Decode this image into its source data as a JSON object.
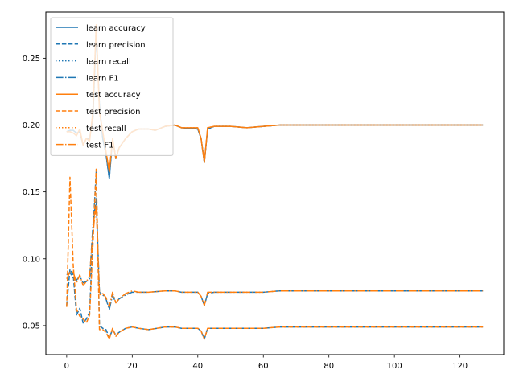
{
  "chart_data": {
    "type": "line",
    "title": "",
    "xlabel": "",
    "ylabel": "",
    "xlim": [
      -6.35,
      133.35
    ],
    "ylim": [
      0.0283,
      0.2845
    ],
    "xticks": [
      0,
      20,
      40,
      60,
      80,
      100,
      120
    ],
    "yticks": [
      0.05,
      0.1,
      0.15,
      0.2,
      0.25
    ],
    "ytick_labels": [
      "0.05",
      "0.10",
      "0.15",
      "0.20",
      "0.25"
    ],
    "grid": false,
    "legend_position": "top-left",
    "colors": {
      "learn": "#1f77b4",
      "test": "#ff7f0e"
    },
    "series": [
      {
        "name": "learn accuracy",
        "group": "learn",
        "style": "solid",
        "key": "acc"
      },
      {
        "name": "learn precision",
        "group": "learn",
        "style": "dashed",
        "key": "prec"
      },
      {
        "name": "learn recall",
        "group": "learn",
        "style": "dotted",
        "key": "acc"
      },
      {
        "name": "learn F1",
        "group": "learn",
        "style": "dashdot",
        "key": "f1"
      },
      {
        "name": "test accuracy",
        "group": "test",
        "style": "solid",
        "key": "acc"
      },
      {
        "name": "test precision",
        "group": "test",
        "style": "dashed",
        "key": "prec"
      },
      {
        "name": "test recall",
        "group": "test",
        "style": "dotted",
        "key": "acc"
      },
      {
        "name": "test F1",
        "group": "test",
        "style": "dashdot",
        "key": "f1"
      }
    ],
    "curves": {
      "learn": {
        "acc": [
          [
            0,
            0.195
          ],
          [
            1,
            0.196
          ],
          [
            2,
            0.196
          ],
          [
            3,
            0.194
          ],
          [
            4,
            0.195
          ],
          [
            5,
            0.185
          ],
          [
            6,
            0.19
          ],
          [
            7,
            0.19
          ],
          [
            8,
            0.205
          ],
          [
            9,
            0.27
          ],
          [
            10,
            0.215
          ],
          [
            11,
            0.19
          ],
          [
            12,
            0.178
          ],
          [
            13,
            0.16
          ],
          [
            14,
            0.19
          ],
          [
            15,
            0.175
          ],
          [
            16,
            0.183
          ],
          [
            18,
            0.19
          ],
          [
            20,
            0.195
          ],
          [
            22,
            0.197
          ],
          [
            25,
            0.197
          ],
          [
            27,
            0.196
          ],
          [
            30,
            0.199
          ],
          [
            33,
            0.2
          ],
          [
            35,
            0.198
          ],
          [
            40,
            0.197
          ],
          [
            41,
            0.19
          ],
          [
            42,
            0.172
          ],
          [
            43,
            0.197
          ],
          [
            45,
            0.199
          ],
          [
            50,
            0.199
          ],
          [
            55,
            0.198
          ],
          [
            60,
            0.199
          ],
          [
            65,
            0.2
          ],
          [
            70,
            0.2
          ],
          [
            80,
            0.2
          ],
          [
            100,
            0.2
          ],
          [
            127,
            0.2
          ]
        ],
        "prec": [
          [
            0,
            0.065
          ],
          [
            1,
            0.092
          ],
          [
            2,
            0.088
          ],
          [
            3,
            0.058
          ],
          [
            4,
            0.063
          ],
          [
            5,
            0.052
          ],
          [
            6,
            0.055
          ],
          [
            7,
            0.06
          ],
          [
            8,
            0.12
          ],
          [
            9,
            0.165
          ],
          [
            10,
            0.05
          ],
          [
            11,
            0.048
          ],
          [
            12,
            0.047
          ],
          [
            13,
            0.041
          ],
          [
            14,
            0.047
          ],
          [
            15,
            0.043
          ],
          [
            16,
            0.045
          ],
          [
            18,
            0.048
          ],
          [
            20,
            0.049
          ],
          [
            22,
            0.048
          ],
          [
            25,
            0.047
          ],
          [
            30,
            0.049
          ],
          [
            33,
            0.049
          ],
          [
            35,
            0.048
          ],
          [
            40,
            0.048
          ],
          [
            41,
            0.046
          ],
          [
            42,
            0.04
          ],
          [
            43,
            0.048
          ],
          [
            45,
            0.048
          ],
          [
            50,
            0.048
          ],
          [
            55,
            0.048
          ],
          [
            60,
            0.048
          ],
          [
            65,
            0.049
          ],
          [
            70,
            0.049
          ],
          [
            80,
            0.049
          ],
          [
            100,
            0.049
          ],
          [
            127,
            0.049
          ]
        ],
        "f1": [
          [
            0,
            0.088
          ],
          [
            1,
            0.09
          ],
          [
            2,
            0.085
          ],
          [
            3,
            0.084
          ],
          [
            4,
            0.087
          ],
          [
            5,
            0.082
          ],
          [
            6,
            0.083
          ],
          [
            7,
            0.085
          ],
          [
            8,
            0.125
          ],
          [
            9,
            0.145
          ],
          [
            10,
            0.075
          ],
          [
            11,
            0.073
          ],
          [
            12,
            0.07
          ],
          [
            13,
            0.062
          ],
          [
            14,
            0.073
          ],
          [
            15,
            0.067
          ],
          [
            16,
            0.07
          ],
          [
            18,
            0.073
          ],
          [
            20,
            0.075
          ],
          [
            22,
            0.075
          ],
          [
            25,
            0.075
          ],
          [
            30,
            0.076
          ],
          [
            33,
            0.076
          ],
          [
            35,
            0.075
          ],
          [
            40,
            0.075
          ],
          [
            41,
            0.072
          ],
          [
            42,
            0.065
          ],
          [
            43,
            0.074
          ],
          [
            45,
            0.075
          ],
          [
            50,
            0.075
          ],
          [
            55,
            0.075
          ],
          [
            60,
            0.075
          ],
          [
            65,
            0.076
          ],
          [
            70,
            0.076
          ],
          [
            80,
            0.076
          ],
          [
            100,
            0.076
          ],
          [
            127,
            0.076
          ]
        ]
      },
      "test": {
        "acc": [
          [
            0,
            0.195
          ],
          [
            1,
            0.195
          ],
          [
            2,
            0.194
          ],
          [
            3,
            0.192
          ],
          [
            4,
            0.197
          ],
          [
            5,
            0.185
          ],
          [
            6,
            0.19
          ],
          [
            7,
            0.188
          ],
          [
            8,
            0.21
          ],
          [
            9,
            0.275
          ],
          [
            10,
            0.21
          ],
          [
            11,
            0.195
          ],
          [
            12,
            0.18
          ],
          [
            13,
            0.165
          ],
          [
            14,
            0.19
          ],
          [
            15,
            0.175
          ],
          [
            16,
            0.183
          ],
          [
            18,
            0.19
          ],
          [
            20,
            0.195
          ],
          [
            22,
            0.197
          ],
          [
            25,
            0.197
          ],
          [
            27,
            0.196
          ],
          [
            30,
            0.199
          ],
          [
            33,
            0.2
          ],
          [
            35,
            0.198
          ],
          [
            40,
            0.198
          ],
          [
            41,
            0.19
          ],
          [
            42,
            0.172
          ],
          [
            43,
            0.198
          ],
          [
            45,
            0.199
          ],
          [
            50,
            0.199
          ],
          [
            55,
            0.198
          ],
          [
            60,
            0.199
          ],
          [
            65,
            0.2
          ],
          [
            70,
            0.2
          ],
          [
            80,
            0.2
          ],
          [
            100,
            0.2
          ],
          [
            127,
            0.2
          ]
        ],
        "prec": [
          [
            0,
            0.064
          ],
          [
            1,
            0.161
          ],
          [
            2,
            0.095
          ],
          [
            3,
            0.062
          ],
          [
            4,
            0.057
          ],
          [
            5,
            0.055
          ],
          [
            6,
            0.052
          ],
          [
            7,
            0.058
          ],
          [
            8,
            0.11
          ],
          [
            9,
            0.167
          ],
          [
            10,
            0.047
          ],
          [
            11,
            0.047
          ],
          [
            12,
            0.045
          ],
          [
            13,
            0.04
          ],
          [
            14,
            0.048
          ],
          [
            15,
            0.042
          ],
          [
            16,
            0.045
          ],
          [
            18,
            0.048
          ],
          [
            20,
            0.049
          ],
          [
            22,
            0.048
          ],
          [
            25,
            0.047
          ],
          [
            30,
            0.049
          ],
          [
            33,
            0.049
          ],
          [
            35,
            0.048
          ],
          [
            40,
            0.048
          ],
          [
            41,
            0.046
          ],
          [
            42,
            0.04
          ],
          [
            43,
            0.048
          ],
          [
            45,
            0.048
          ],
          [
            50,
            0.048
          ],
          [
            55,
            0.048
          ],
          [
            60,
            0.048
          ],
          [
            65,
            0.049
          ],
          [
            70,
            0.049
          ],
          [
            80,
            0.049
          ],
          [
            100,
            0.049
          ],
          [
            127,
            0.049
          ]
        ],
        "f1": [
          [
            0,
            0.085
          ],
          [
            1,
            0.09
          ],
          [
            2,
            0.09
          ],
          [
            3,
            0.082
          ],
          [
            4,
            0.088
          ],
          [
            5,
            0.08
          ],
          [
            6,
            0.083
          ],
          [
            7,
            0.087
          ],
          [
            8,
            0.12
          ],
          [
            9,
            0.14
          ],
          [
            10,
            0.073
          ],
          [
            11,
            0.074
          ],
          [
            12,
            0.071
          ],
          [
            13,
            0.064
          ],
          [
            14,
            0.075
          ],
          [
            15,
            0.067
          ],
          [
            16,
            0.07
          ],
          [
            18,
            0.074
          ],
          [
            20,
            0.076
          ],
          [
            22,
            0.075
          ],
          [
            25,
            0.075
          ],
          [
            30,
            0.076
          ],
          [
            33,
            0.076
          ],
          [
            35,
            0.075
          ],
          [
            40,
            0.075
          ],
          [
            41,
            0.072
          ],
          [
            42,
            0.065
          ],
          [
            43,
            0.075
          ],
          [
            45,
            0.075
          ],
          [
            50,
            0.075
          ],
          [
            55,
            0.075
          ],
          [
            60,
            0.075
          ],
          [
            65,
            0.076
          ],
          [
            70,
            0.076
          ],
          [
            80,
            0.076
          ],
          [
            100,
            0.076
          ],
          [
            127,
            0.076
          ]
        ]
      }
    }
  }
}
